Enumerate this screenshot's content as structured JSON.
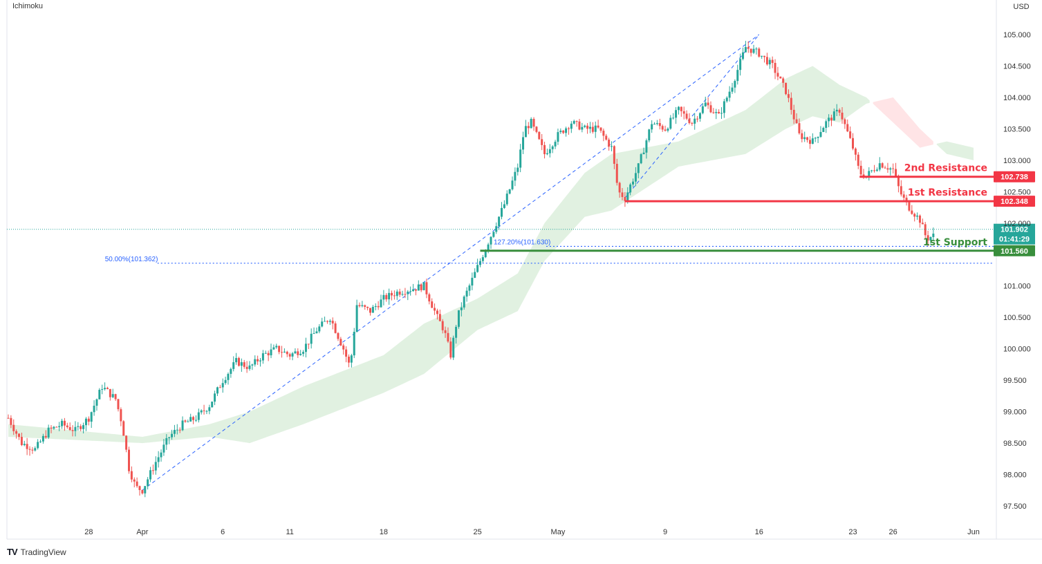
{
  "indicator": "Ichimoku",
  "currency": "USD",
  "brand": "TradingView",
  "brand_logo": "TV",
  "chart_data": {
    "type": "candlestick",
    "y_axis": {
      "range": [
        97.3,
        105.35
      ],
      "ticks": [
        "105.000",
        "104.500",
        "104.000",
        "103.500",
        "103.000",
        "102.500",
        "102.000",
        "101.000",
        "100.500",
        "100.000",
        "99.500",
        "99.000",
        "98.500",
        "98.000",
        "97.500"
      ]
    },
    "x_axis": {
      "range_days": [
        0,
        96
      ],
      "ticks": [
        {
          "label": "28",
          "day": 6
        },
        {
          "label": "Apr",
          "day": 10
        },
        {
          "label": "6",
          "day": 16
        },
        {
          "label": "11",
          "day": 21
        },
        {
          "label": "18",
          "day": 28
        },
        {
          "label": "25",
          "day": 35
        },
        {
          "label": "May",
          "day": 41
        },
        {
          "label": "9",
          "day": 49
        },
        {
          "label": "16",
          "day": 56
        },
        {
          "label": "23",
          "day": 63
        },
        {
          "label": "26",
          "day": 66
        },
        {
          "label": "Jun",
          "day": 72
        }
      ]
    },
    "price_path": [
      [
        0,
        98.9
      ],
      [
        1,
        98.5
      ],
      [
        2,
        98.4
      ],
      [
        3,
        98.7
      ],
      [
        4,
        98.8
      ],
      [
        5,
        98.7
      ],
      [
        6,
        98.9
      ],
      [
        7,
        99.4
      ],
      [
        8,
        99.2
      ],
      [
        8.5,
        98.8
      ],
      [
        9,
        98.1
      ],
      [
        9.5,
        97.8
      ],
      [
        10,
        97.75
      ],
      [
        11,
        98.2
      ],
      [
        12,
        98.6
      ],
      [
        13,
        98.8
      ],
      [
        14,
        98.9
      ],
      [
        15,
        99.1
      ],
      [
        16,
        99.5
      ],
      [
        17,
        99.8
      ],
      [
        18,
        99.7
      ],
      [
        19,
        99.9
      ],
      [
        20,
        100.0
      ],
      [
        21,
        99.9
      ],
      [
        22,
        100.0
      ],
      [
        23,
        100.3
      ],
      [
        24,
        100.5
      ],
      [
        25,
        100.0
      ],
      [
        25.5,
        99.7
      ],
      [
        26,
        100.7
      ],
      [
        27,
        100.6
      ],
      [
        28,
        100.8
      ],
      [
        29,
        100.9
      ],
      [
        30,
        100.95
      ],
      [
        31,
        101.0
      ],
      [
        32,
        100.5
      ],
      [
        32.5,
        100.3
      ],
      [
        33,
        99.9
      ],
      [
        33.5,
        100.5
      ],
      [
        34,
        100.8
      ],
      [
        35,
        101.3
      ],
      [
        36,
        101.8
      ],
      [
        37,
        102.3
      ],
      [
        38,
        102.9
      ],
      [
        38.5,
        103.5
      ],
      [
        39,
        103.6
      ],
      [
        40,
        103.1
      ],
      [
        41,
        103.4
      ],
      [
        42,
        103.6
      ],
      [
        43,
        103.5
      ],
      [
        44,
        103.5
      ],
      [
        45,
        103.2
      ],
      [
        45.5,
        102.5
      ],
      [
        46,
        102.4
      ],
      [
        47,
        102.9
      ],
      [
        48,
        103.6
      ],
      [
        49,
        103.5
      ],
      [
        50,
        103.8
      ],
      [
        51,
        103.6
      ],
      [
        52,
        103.9
      ],
      [
        53,
        103.7
      ],
      [
        54,
        104.2
      ],
      [
        55,
        104.8
      ],
      [
        56,
        104.7
      ],
      [
        57,
        104.5
      ],
      [
        58,
        104.1
      ],
      [
        59,
        103.4
      ],
      [
        60,
        103.3
      ],
      [
        61,
        103.6
      ],
      [
        62,
        103.8
      ],
      [
        63,
        103.2
      ],
      [
        63.5,
        102.8
      ],
      [
        64,
        102.75
      ],
      [
        65,
        102.95
      ],
      [
        66,
        102.85
      ],
      [
        66.5,
        102.5
      ],
      [
        67,
        102.3
      ],
      [
        68,
        102.05
      ],
      [
        68.5,
        101.75
      ],
      [
        69,
        101.8
      ]
    ],
    "ichimoku_cloud": {
      "span_a": [
        [
          0,
          98.8
        ],
        [
          10,
          98.6
        ],
        [
          15,
          98.8
        ],
        [
          18,
          99.0
        ],
        [
          22,
          99.4
        ],
        [
          28,
          99.9
        ],
        [
          31,
          100.4
        ],
        [
          35,
          100.8
        ],
        [
          38,
          101.2
        ],
        [
          40,
          102.0
        ],
        [
          43,
          102.8
        ],
        [
          45,
          103.1
        ],
        [
          50,
          103.3
        ],
        [
          55,
          103.8
        ],
        [
          58,
          104.3
        ],
        [
          60,
          104.5
        ],
        [
          62,
          104.2
        ],
        [
          64,
          104.0
        ],
        [
          66,
          103.6
        ],
        [
          68,
          103.2
        ],
        [
          70,
          103.3
        ],
        [
          72,
          103.2
        ]
      ],
      "span_b": [
        [
          0,
          98.6
        ],
        [
          10,
          98.5
        ],
        [
          15,
          98.6
        ],
        [
          18,
          98.5
        ],
        [
          22,
          98.8
        ],
        [
          28,
          99.3
        ],
        [
          31,
          99.6
        ],
        [
          35,
          100.3
        ],
        [
          38,
          100.6
        ],
        [
          40,
          101.4
        ],
        [
          43,
          102.1
        ],
        [
          45,
          102.2
        ],
        [
          50,
          102.9
        ],
        [
          55,
          103.1
        ],
        [
          58,
          103.5
        ],
        [
          60,
          103.7
        ],
        [
          62,
          103.6
        ],
        [
          64,
          103.9
        ],
        [
          66,
          104.0
        ],
        [
          68,
          103.5
        ],
        [
          70,
          103.1
        ],
        [
          72,
          103.0
        ]
      ]
    },
    "fib_levels": [
      {
        "label": "50.00%(101.362)",
        "value": 101.362,
        "from_day": 7
      },
      {
        "label": "127.20%(101.630)",
        "value": 101.63,
        "from_day": 36
      }
    ],
    "levels": [
      {
        "name": "2nd Resistance",
        "value": 102.738,
        "tag": "102.738",
        "color": "#f23645",
        "from_day": 63.5
      },
      {
        "name": "1st Resistance",
        "value": 102.348,
        "tag": "102.348",
        "color": "#f23645",
        "from_day": 46
      },
      {
        "name": "1st Support",
        "value": 101.56,
        "tag": "101.560",
        "color": "#388e3c",
        "from_day": 35.2
      }
    ],
    "current_price": {
      "value": 101.902,
      "label": "101.902",
      "countdown": "01:41:29",
      "color": "#26a69a"
    },
    "trend_lines": [
      {
        "from": [
          10,
          97.75
        ],
        "to": [
          56,
          105.0
        ]
      },
      {
        "from": [
          46,
          102.4
        ],
        "to": [
          56,
          105.0
        ]
      }
    ]
  }
}
